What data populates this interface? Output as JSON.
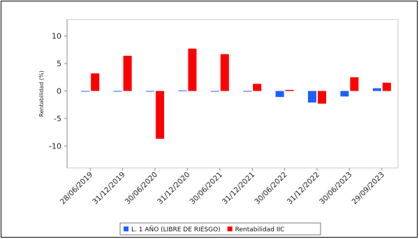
{
  "chart_data": {
    "type": "bar",
    "title": "",
    "xlabel": "",
    "ylabel": "Rentabilidad (%)",
    "ylim": [
      -14,
      13
    ],
    "yticks": [
      10,
      5,
      0,
      -5,
      -10
    ],
    "grid": false,
    "legend_position": "bottom",
    "categories": [
      "28/06/2019",
      "31/12/2019",
      "30/06/2020",
      "31/12/2020",
      "30/06/2021",
      "31/12/2021",
      "30/06/2022",
      "31/12/2022",
      "30/06/2023",
      "29/09/2023"
    ],
    "series": [
      {
        "name": "L. 1 AÑO (LIBRE DE RIESGO)",
        "color": "#1f5fff",
        "values": [
          -0.1,
          -0.1,
          -0.1,
          0.1,
          -0.1,
          -0.05,
          -1.1,
          -2.1,
          -1.0,
          0.5
        ]
      },
      {
        "name": "Rentabilidad IIC",
        "color": "#ff0000",
        "values": [
          3.2,
          6.4,
          -8.7,
          7.7,
          6.7,
          1.3,
          0.2,
          -2.3,
          2.5,
          1.5
        ]
      }
    ]
  }
}
